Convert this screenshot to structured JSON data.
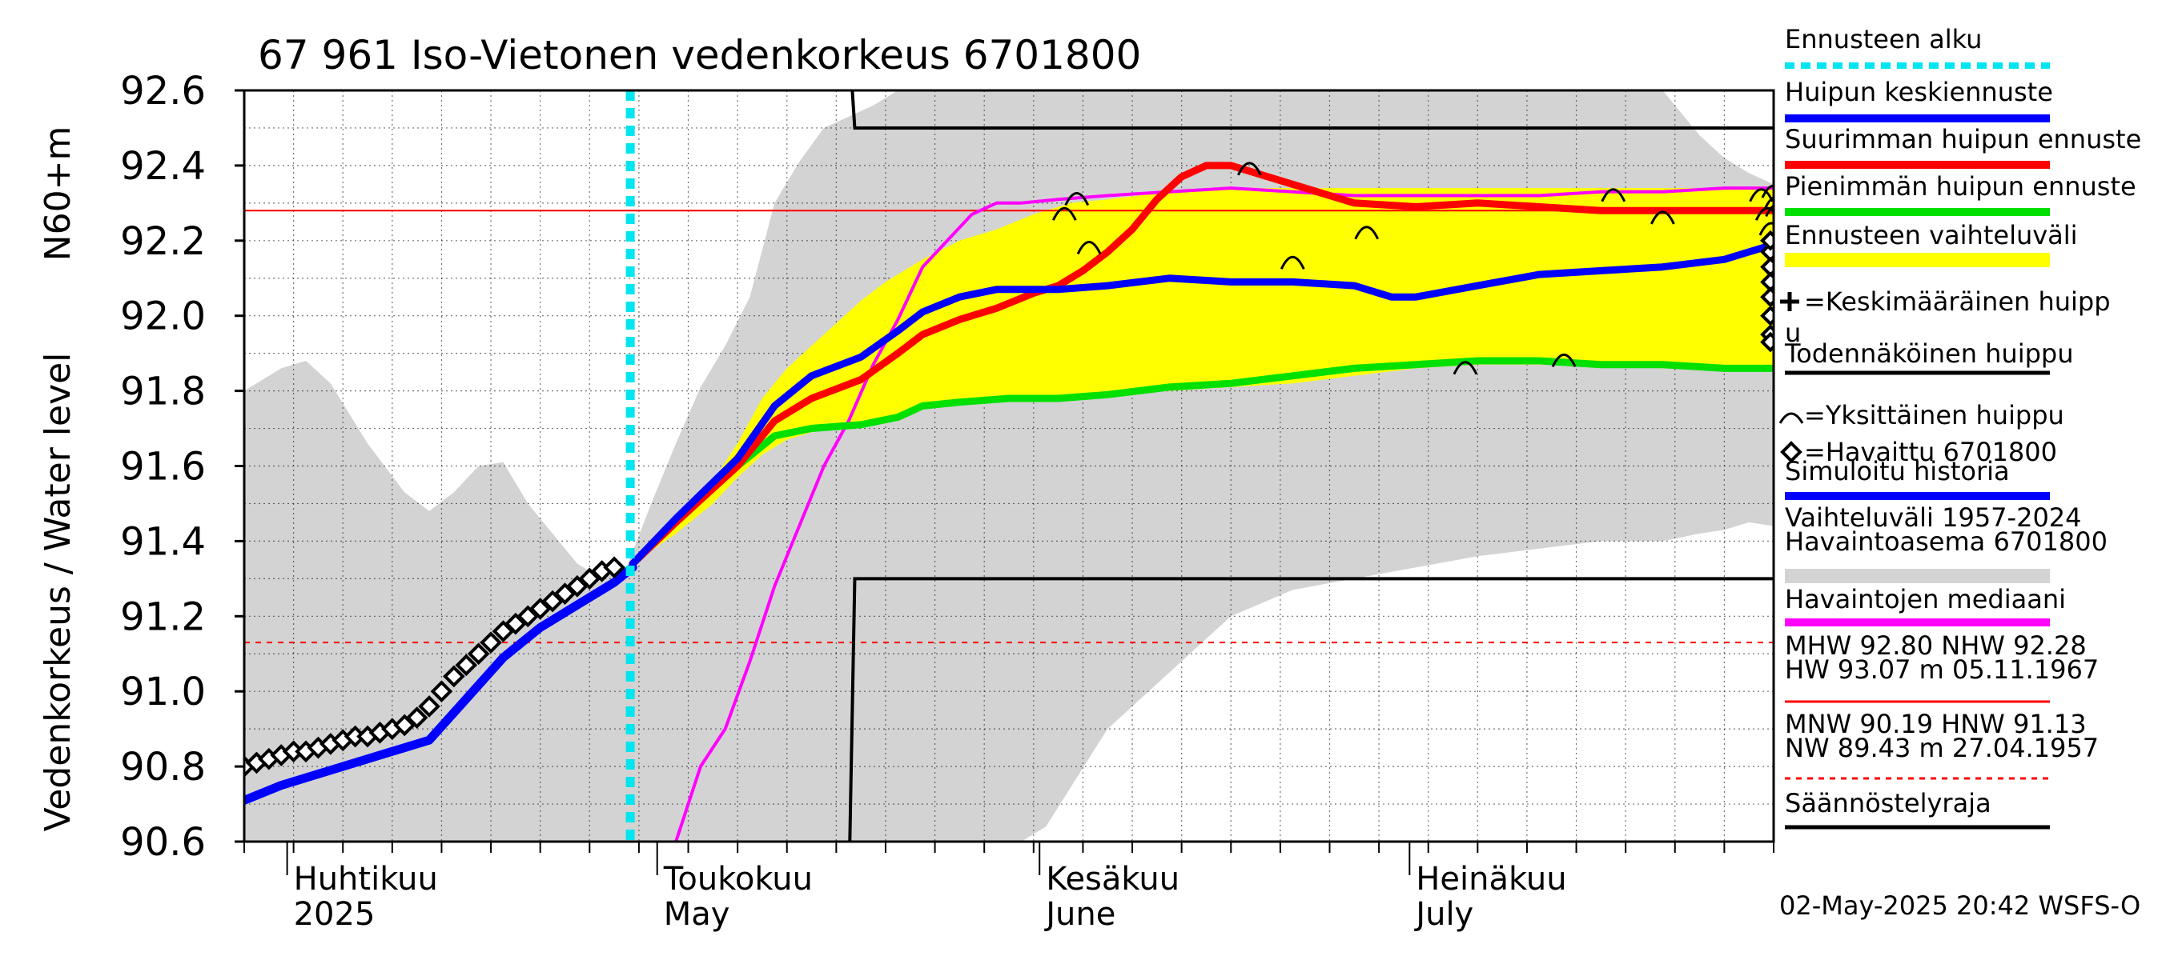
{
  "chart_data": {
    "type": "line",
    "title": "67 961 Iso-Vietonen vedenkorkeus 6701800",
    "ylabel": "Vedenkorkeus / Water level",
    "ylabel_unit": "N60+m",
    "ylim": [
      90.6,
      92.6
    ],
    "y_ticks": [
      "90.6",
      "90.8",
      "91.0",
      "91.2",
      "91.4",
      "91.6",
      "91.8",
      "92.0",
      "92.2",
      "92.4",
      "92.6"
    ],
    "x_unit": "days since 2025-03-28",
    "xlim": [
      0,
      124
    ],
    "month_labels": [
      {
        "fi": "Huhtikuu",
        "en": "2025",
        "day": 4
      },
      {
        "fi": "Toukokuu",
        "en": "May",
        "day": 34
      },
      {
        "fi": "Kesäkuu",
        "en": "June",
        "day": 65
      },
      {
        "fi": "Heinäkuu",
        "en": "July",
        "day": 95
      }
    ],
    "forecast_start_day": 31.3,
    "series": [
      {
        "name": "Vaihteluväli 1957-2024 Havaintoasema 6701800",
        "kind": "band",
        "color": "#d3d3d3",
        "x": [
          0,
          3,
          5,
          7,
          10,
          13,
          15,
          17,
          19,
          21,
          23,
          25,
          27,
          29,
          31,
          33,
          35,
          37,
          39,
          41,
          43,
          45,
          47,
          49,
          51,
          53,
          55,
          57,
          59,
          61,
          63,
          65,
          70,
          75,
          80,
          85,
          90,
          95,
          100,
          105,
          110,
          115,
          118,
          120,
          122,
          124
        ],
        "upper": [
          91.8,
          91.86,
          91.88,
          91.82,
          91.66,
          91.53,
          91.48,
          91.53,
          91.6,
          91.61,
          91.5,
          91.42,
          91.34,
          91.3,
          91.33,
          91.5,
          91.66,
          91.81,
          91.92,
          92.05,
          92.3,
          92.41,
          92.5,
          92.53,
          92.56,
          92.6,
          92.6,
          92.6,
          92.6,
          92.6,
          92.6,
          92.6,
          92.6,
          92.6,
          92.6,
          92.6,
          92.6,
          92.6,
          92.6,
          92.6,
          92.6,
          92.6,
          92.48,
          92.42,
          92.38,
          92.35
        ],
        "lower": [
          90.6,
          90.6,
          90.6,
          90.6,
          90.6,
          90.6,
          90.6,
          90.6,
          90.6,
          90.6,
          90.6,
          90.6,
          90.6,
          90.6,
          90.6,
          90.6,
          90.6,
          90.6,
          90.6,
          90.6,
          90.6,
          90.6,
          90.6,
          90.6,
          90.6,
          90.6,
          90.6,
          90.6,
          90.6,
          90.6,
          90.6,
          90.64,
          90.9,
          91.05,
          91.2,
          91.27,
          91.3,
          91.33,
          91.36,
          91.38,
          91.4,
          91.4,
          91.42,
          91.43,
          91.45,
          91.44
        ]
      },
      {
        "name": "Ennusteen vaihteluväli",
        "kind": "band",
        "color": "#ffff00",
        "x": [
          31,
          35,
          38,
          40,
          42,
          44,
          46,
          48,
          50,
          52,
          55,
          58,
          61,
          64,
          67,
          70,
          75,
          80,
          85,
          90,
          95,
          100,
          105,
          110,
          115,
          120,
          124
        ],
        "upper": [
          91.33,
          91.46,
          91.56,
          91.66,
          91.78,
          91.86,
          91.92,
          91.98,
          92.04,
          92.09,
          92.15,
          92.2,
          92.23,
          92.27,
          92.3,
          92.31,
          92.33,
          92.34,
          92.34,
          92.34,
          92.34,
          92.34,
          92.34,
          92.34,
          92.34,
          92.34,
          92.34
        ],
        "lower": [
          91.33,
          91.42,
          91.5,
          91.57,
          91.63,
          91.67,
          91.69,
          91.7,
          91.71,
          91.73,
          91.76,
          91.77,
          91.78,
          91.78,
          91.78,
          91.79,
          91.8,
          91.81,
          91.82,
          91.84,
          91.86,
          91.87,
          91.87,
          91.87,
          91.86,
          91.86,
          91.86
        ]
      },
      {
        "name": "Havaintojen mediaani",
        "kind": "line",
        "color": "#ff00ff",
        "x": [
          35,
          37,
          39,
          41,
          43,
          45,
          47,
          49,
          51,
          53,
          55,
          57,
          59,
          61,
          63,
          66,
          70,
          75,
          80,
          85,
          90,
          95,
          100,
          105,
          110,
          115,
          120,
          124
        ],
        "values": [
          90.6,
          90.8,
          90.9,
          91.08,
          91.28,
          91.44,
          91.6,
          91.72,
          91.87,
          91.99,
          92.13,
          92.2,
          92.27,
          92.3,
          92.3,
          92.31,
          92.32,
          92.33,
          92.34,
          92.33,
          92.32,
          92.32,
          92.32,
          92.32,
          92.33,
          92.33,
          92.34,
          92.34
        ]
      },
      {
        "name": "Pienimmän huipun ennuste",
        "kind": "line",
        "color": "#00e000",
        "x": [
          31.5,
          35,
          40,
          43,
          46,
          50,
          53,
          55,
          58,
          62,
          66,
          70,
          75,
          80,
          85,
          90,
          95,
          100,
          105,
          110,
          115,
          120,
          124
        ],
        "values": [
          91.34,
          91.45,
          91.6,
          91.68,
          91.7,
          91.71,
          91.73,
          91.76,
          91.77,
          91.78,
          91.78,
          91.79,
          91.81,
          91.82,
          91.84,
          91.86,
          91.87,
          91.88,
          91.88,
          91.87,
          91.87,
          91.86,
          91.86
        ]
      },
      {
        "name": "Suurimman huipun ennuste",
        "kind": "line",
        "color": "#ff0000",
        "x": [
          31.5,
          35,
          40,
          43,
          46,
          50,
          53,
          55,
          58,
          61,
          64,
          66,
          68,
          70,
          72,
          74,
          76,
          78,
          80,
          82,
          84,
          86,
          90,
          95,
          100,
          105,
          110,
          115,
          120,
          124
        ],
        "values": [
          91.34,
          91.45,
          91.6,
          91.72,
          91.78,
          91.83,
          91.9,
          91.95,
          91.99,
          92.02,
          92.06,
          92.08,
          92.12,
          92.17,
          92.23,
          92.31,
          92.37,
          92.4,
          92.4,
          92.38,
          92.36,
          92.34,
          92.3,
          92.29,
          92.3,
          92.29,
          92.28,
          92.28,
          92.28,
          92.28
        ]
      },
      {
        "name": "Huipun keskiennuste",
        "kind": "line",
        "color": "#0000ff",
        "x": [
          31.5,
          35,
          40,
          43,
          46,
          50,
          53,
          55,
          58,
          61,
          63,
          66,
          70,
          75,
          80,
          85,
          90,
          93,
          95,
          100,
          105,
          110,
          115,
          120,
          124
        ],
        "values": [
          91.34,
          91.46,
          91.62,
          91.76,
          91.84,
          91.89,
          91.96,
          92.01,
          92.05,
          92.07,
          92.07,
          92.07,
          92.08,
          92.1,
          92.09,
          92.09,
          92.08,
          92.05,
          92.05,
          92.08,
          92.11,
          92.12,
          92.13,
          92.15,
          92.19
        ]
      },
      {
        "name": "Simuloitu historia",
        "kind": "line",
        "color": "#0000ff",
        "x": [
          0,
          3,
          6,
          9,
          12,
          15,
          18,
          21,
          24,
          27,
          30,
          31.5
        ],
        "values": [
          90.71,
          90.75,
          90.78,
          90.81,
          90.84,
          90.87,
          90.98,
          91.09,
          91.17,
          91.23,
          91.29,
          91.33
        ]
      },
      {
        "name": "Havaittu 6701800",
        "kind": "markers",
        "color": "#000000",
        "x": [
          0,
          1,
          2,
          3,
          4,
          5,
          6,
          7,
          8,
          9,
          10,
          11,
          12,
          13,
          14,
          15,
          16,
          17,
          18,
          19,
          20,
          21,
          22,
          23,
          24,
          25,
          26,
          27,
          28,
          29,
          30
        ],
        "values": [
          90.8,
          90.81,
          90.82,
          90.83,
          90.84,
          90.84,
          90.85,
          90.86,
          90.87,
          90.88,
          90.88,
          90.89,
          90.9,
          90.91,
          90.93,
          90.96,
          91.0,
          91.04,
          91.07,
          91.1,
          91.13,
          91.16,
          91.18,
          91.2,
          91.22,
          91.24,
          91.26,
          91.28,
          91.3,
          91.32,
          91.33
        ]
      },
      {
        "name": "Yksittäinen huippu",
        "kind": "arcs",
        "color": "#000000",
        "x": [
          66.5,
          67.5,
          68.5,
          81.5,
          85,
          91,
          99,
          107,
          111,
          115,
          123,
          123.5,
          123.8,
          124,
          124.2,
          124.3
        ],
        "values": [
          92.28,
          92.32,
          92.19,
          92.4,
          92.15,
          92.23,
          91.87,
          91.89,
          92.33,
          92.27,
          92.33,
          92.28,
          92.24,
          92.34,
          92.31,
          92.29
        ]
      },
      {
        "name": "Todennäköinen huippu",
        "kind": "markers-diamond",
        "color": "#000000",
        "x": [
          124,
          124,
          124,
          124,
          124,
          124,
          124,
          124,
          124
        ],
        "values": [
          92.2,
          92.17,
          92.13,
          92.09,
          92.05,
          92.0,
          91.95,
          91.93,
          92.2
        ]
      }
    ],
    "hlines": [
      {
        "label": "NHW 92.28",
        "value": 92.28,
        "color": "#ff0000",
        "style": "solid"
      },
      {
        "label": "HNW 91.13",
        "value": 91.13,
        "color": "#ff0000",
        "style": "dashed"
      }
    ],
    "regulation_limits": {
      "upper_value": 92.5,
      "upper_from_day": 49.5,
      "lower_value": 91.3,
      "lower_from_day": 49.5
    },
    "legend": [
      {
        "label": "Ennusteen alku",
        "color": "#00e5ee",
        "style": "dotted"
      },
      {
        "label": "Huipun keskiennuste",
        "color": "#0000ff",
        "style": "solid"
      },
      {
        "label": "Suurimman huipun ennuste",
        "color": "#ff0000",
        "style": "solid"
      },
      {
        "label": "Pienimmän huipun ennuste",
        "color": "#00e000",
        "style": "solid"
      },
      {
        "label": "Ennusteen vaihteluväli",
        "color": "#ffff00",
        "style": "band"
      },
      {
        "label": "=Keskimääräinen huipp",
        "label2": "u",
        "color": "#000000",
        "style": "plus"
      },
      {
        "label": "Todennäköinen huippu",
        "color": "#000000",
        "style": "solid"
      },
      {
        "label": "=Yksittäinen huippu",
        "color": "#000000",
        "style": "arc"
      },
      {
        "label": "=Havaittu 6701800",
        "color": "#000000",
        "style": "diamond"
      },
      {
        "label": "Simuloitu historia",
        "color": "#0000ff",
        "style": "solid"
      },
      {
        "label": "Vaihteluväli 1957-2024",
        "label2": " Havaintoasema 6701800",
        "color": "#d3d3d3",
        "style": "band"
      },
      {
        "label": "Havaintojen mediaani",
        "color": "#ff00ff",
        "style": "solid"
      },
      {
        "label": "MHW  92.80 NHW  92.28",
        "label2": "HW  93.07 m 05.11.1967",
        "color": "#ff0000",
        "style": "solid"
      },
      {
        "label": "MNW  90.19 HNW  91.13",
        "label2": "NW  89.43 m 27.04.1957",
        "color": "#ff0000",
        "style": "dashed"
      },
      {
        "label": "Säännöstelyraja",
        "color": "#000000",
        "style": "solid"
      }
    ],
    "footer": "02-May-2025 20:42 WSFS-O"
  }
}
